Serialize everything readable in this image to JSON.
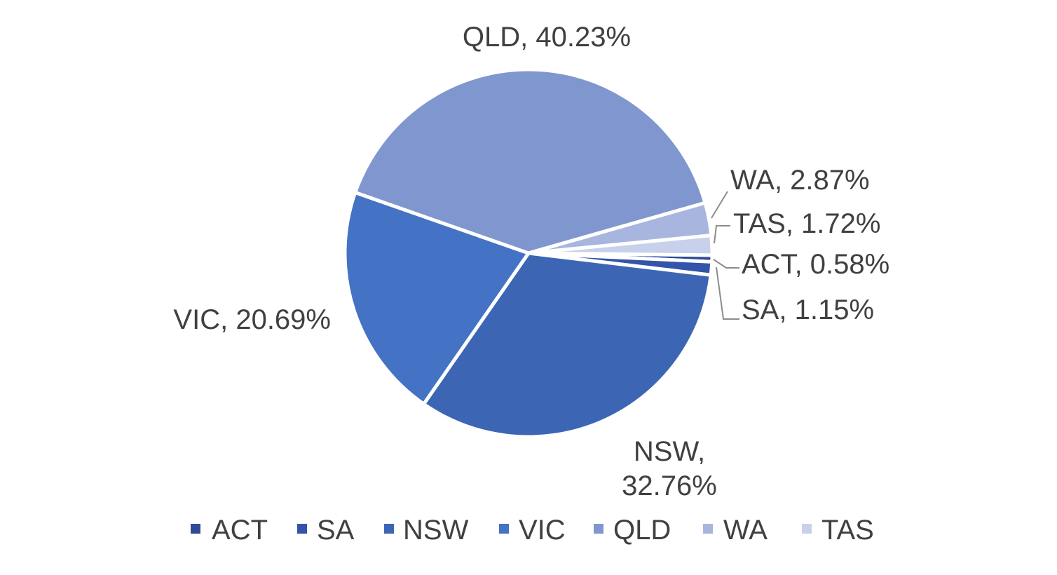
{
  "chart_data": {
    "type": "pie",
    "title": "",
    "start_angle_deg": 90.63,
    "direction": "clockwise",
    "slices": [
      {
        "name": "ACT",
        "value": 0.58,
        "label": "ACT, 0.58%",
        "color": "#2f4a96"
      },
      {
        "name": "SA",
        "value": 1.15,
        "label": "SA, 1.15%",
        "color": "#3354a8"
      },
      {
        "name": "NSW",
        "value": 32.76,
        "label_lines": [
          "NSW,",
          "32.76%"
        ],
        "color": "#3c66b4"
      },
      {
        "name": "VIC",
        "value": 20.69,
        "label": "VIC, 20.69%",
        "color": "#4472c4"
      },
      {
        "name": "QLD",
        "value": 40.23,
        "label": "QLD, 40.23%",
        "color": "#8096cf"
      },
      {
        "name": "WA",
        "value": 2.87,
        "label": "WA, 2.87%",
        "color": "#a7b5df"
      },
      {
        "name": "TAS",
        "value": 1.72,
        "label": "TAS, 1.72%",
        "color": "#c8d1ec"
      }
    ],
    "legend": {
      "position": "bottom",
      "entries": [
        "ACT",
        "SA",
        "NSW",
        "VIC",
        "QLD",
        "WA",
        "TAS"
      ]
    }
  }
}
